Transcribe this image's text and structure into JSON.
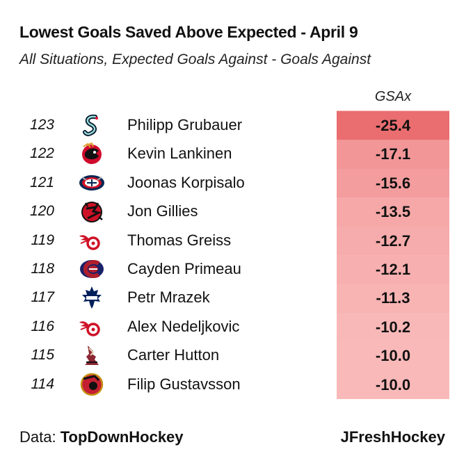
{
  "title": "Lowest Goals Saved Above Expected -  April 9",
  "subtitle": "All Situations, Expected Goals Against - Goals Against",
  "column_header": "GSAx",
  "footer": {
    "data_prefix": "Data: ",
    "data_source": "TopDownHockey",
    "credit": "JFreshHockey"
  },
  "colors": {
    "scale_min": "#ea6d6f",
    "scale_max": "#f9b9b9"
  },
  "chart_data": {
    "type": "table",
    "title": "Lowest Goals Saved Above Expected -  April 9",
    "subtitle": "All Situations, Expected Goals Against - Goals Against",
    "columns": [
      "rank",
      "team_logo",
      "player",
      "GSAx"
    ],
    "rows": [
      {
        "rank": "123",
        "team_logo": "kraken-logo-icon",
        "player": "Philipp Grubauer",
        "gsax": "-25.4",
        "value": -25.4
      },
      {
        "rank": "122",
        "team_logo": "blackhawks-logo-icon",
        "player": "Kevin Lankinen",
        "gsax": "-17.1",
        "value": -17.1
      },
      {
        "rank": "121",
        "team_logo": "blue-jackets-logo-icon",
        "player": "Joonas Korpisalo",
        "gsax": "-15.6",
        "value": -15.6
      },
      {
        "rank": "120",
        "team_logo": "devils-logo-icon",
        "player": "Jon Gillies",
        "gsax": "-13.5",
        "value": -13.5
      },
      {
        "rank": "119",
        "team_logo": "red-wings-logo-icon",
        "player": "Thomas Greiss",
        "gsax": "-12.7",
        "value": -12.7
      },
      {
        "rank": "118",
        "team_logo": "canadiens-logo-icon",
        "player": "Cayden Primeau",
        "gsax": "-12.1",
        "value": -12.1
      },
      {
        "rank": "117",
        "team_logo": "maple-leafs-logo-icon",
        "player": "Petr Mrazek",
        "gsax": "-11.3",
        "value": -11.3
      },
      {
        "rank": "116",
        "team_logo": "red-wings-logo-icon",
        "player": "Alex Nedeljkovic",
        "gsax": "-10.2",
        "value": -10.2
      },
      {
        "rank": "115",
        "team_logo": "coyotes-logo-icon",
        "player": "Carter Hutton",
        "gsax": "-10.0",
        "value": -10.0
      },
      {
        "rank": "114",
        "team_logo": "senators-logo-icon",
        "player": "Filip Gustavsson",
        "gsax": "-10.0",
        "value": -10.0
      }
    ]
  }
}
